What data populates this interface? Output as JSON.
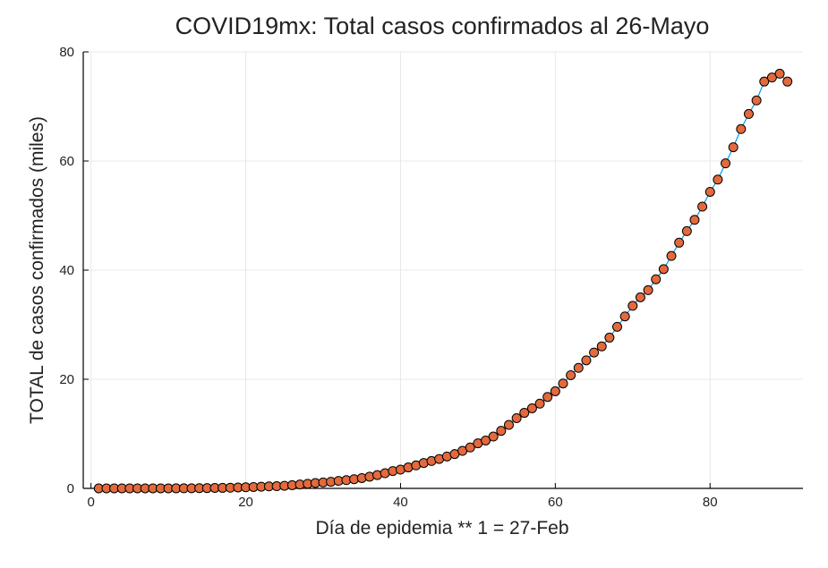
{
  "chart_data": {
    "type": "scatter",
    "title": "COVID19mx: Total casos confirmados al 26-Mayo",
    "xlabel": "Día de epidemia ** 1 = 27-Feb",
    "ylabel": "TOTAL de casos confirmados (miles)",
    "xlim": [
      -1,
      92
    ],
    "ylim": [
      0,
      80
    ],
    "xticks": [
      0,
      20,
      40,
      60,
      80
    ],
    "yticks": [
      0,
      20,
      40,
      60,
      80
    ],
    "grid": true,
    "legend": "none",
    "colors": {
      "marker_fill": "#e26a3d",
      "marker_stroke": "#000000",
      "line": "#009af9",
      "grid": "#e8e8e8",
      "axis": "#000000"
    },
    "series": [
      {
        "x": [
          1,
          2,
          3,
          4,
          5,
          6,
          7,
          8,
          9,
          10,
          11,
          12,
          13,
          14,
          15,
          16,
          17,
          18,
          19,
          20,
          21,
          22,
          23,
          24,
          25,
          26,
          27,
          28,
          29,
          30,
          31,
          32,
          33,
          34,
          35,
          36,
          37,
          38,
          39,
          40,
          41,
          42,
          43,
          44,
          45,
          46,
          47,
          48,
          49,
          50,
          51,
          52,
          53,
          54,
          55,
          56,
          57,
          58,
          59,
          60,
          61,
          62,
          63,
          64,
          65,
          66,
          67,
          68,
          69,
          70,
          71,
          72,
          73,
          74,
          75,
          76,
          77,
          78,
          79,
          80,
          81,
          82,
          83,
          84,
          85,
          86,
          87,
          88,
          89,
          90
        ],
        "y": [
          0.001,
          0.004,
          0.005,
          0.005,
          0.005,
          0.006,
          0.007,
          0.007,
          0.007,
          0.008,
          0.012,
          0.015,
          0.026,
          0.041,
          0.053,
          0.082,
          0.093,
          0.118,
          0.164,
          0.203,
          0.251,
          0.316,
          0.367,
          0.405,
          0.475,
          0.585,
          0.717,
          0.848,
          0.993,
          1.094,
          1.215,
          1.378,
          1.51,
          1.688,
          1.89,
          2.143,
          2.439,
          2.785,
          3.181,
          3.441,
          3.844,
          4.219,
          4.661,
          5.014,
          5.399,
          5.847,
          6.297,
          6.875,
          7.497,
          8.261,
          8.772,
          9.501,
          10.544,
          11.633,
          12.872,
          13.842,
          14.677,
          15.529,
          16.752,
          17.799,
          19.224,
          20.739,
          22.088,
          23.471,
          24.905,
          26.025,
          27.634,
          29.616,
          31.522,
          33.46,
          35.022,
          36.327,
          38.324,
          40.186,
          42.595,
          45.032,
          47.144,
          49.219,
          51.633,
          54.346,
          56.594,
          59.567,
          62.527,
          65.856,
          68.62,
          71.105,
          74.56,
          75.3,
          76.0,
          74.56
        ]
      }
    ]
  }
}
